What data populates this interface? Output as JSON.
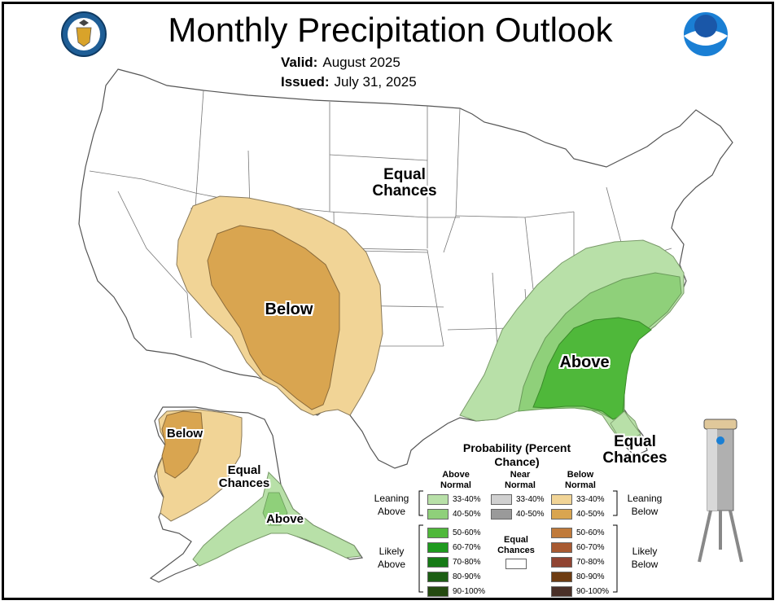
{
  "title": "Monthly Precipitation Outlook",
  "valid_label": "Valid:",
  "valid_value": "August 2025",
  "issued_label": "Issued:",
  "issued_value": "July 31, 2025",
  "logos": {
    "left": "seal-logo",
    "right": "noaa-logo",
    "right_text": "NOAA"
  },
  "map_labels": {
    "conus_ec": "Equal Chances",
    "conus_below": "Below",
    "conus_above": "Above",
    "florida_ec": "Equal Chances",
    "alaska_below": "Below",
    "alaska_ec": "Equal Chances",
    "alaska_above": "Above"
  },
  "legend": {
    "title": "Probability (Percent Chance)",
    "col_above": "Above Normal",
    "col_near": "Near Normal",
    "col_below": "Below Normal",
    "leaning_above": "Leaning Above",
    "likely_above": "Likely Above",
    "leaning_below": "Leaning Below",
    "likely_below": "Likely Below",
    "equal_chances": "Equal Chances",
    "above_bins": [
      {
        "label": "33-40%",
        "color": "#b8e0a8"
      },
      {
        "label": "40-50%",
        "color": "#8fd07a"
      },
      {
        "label": "50-60%",
        "color": "#4fb83a"
      },
      {
        "label": "60-70%",
        "color": "#1e9a1e"
      },
      {
        "label": "70-80%",
        "color": "#167a16"
      },
      {
        "label": "80-90%",
        "color": "#1c5e14"
      },
      {
        "label": "90-100%",
        "color": "#244a10"
      }
    ],
    "near_bins": [
      {
        "label": "33-40%",
        "color": "#d0d0d0"
      },
      {
        "label": "40-50%",
        "color": "#9a9a9a"
      }
    ],
    "below_bins": [
      {
        "label": "33-40%",
        "color": "#f1d496"
      },
      {
        "label": "40-50%",
        "color": "#d9a550"
      },
      {
        "label": "50-60%",
        "color": "#c07a3a"
      },
      {
        "label": "60-70%",
        "color": "#a85a32"
      },
      {
        "label": "70-80%",
        "color": "#904432"
      },
      {
        "label": "80-90%",
        "color": "#6e3c12"
      },
      {
        "label": "90-100%",
        "color": "#4a3028"
      }
    ],
    "equal_chances_color": "#ffffff"
  }
}
